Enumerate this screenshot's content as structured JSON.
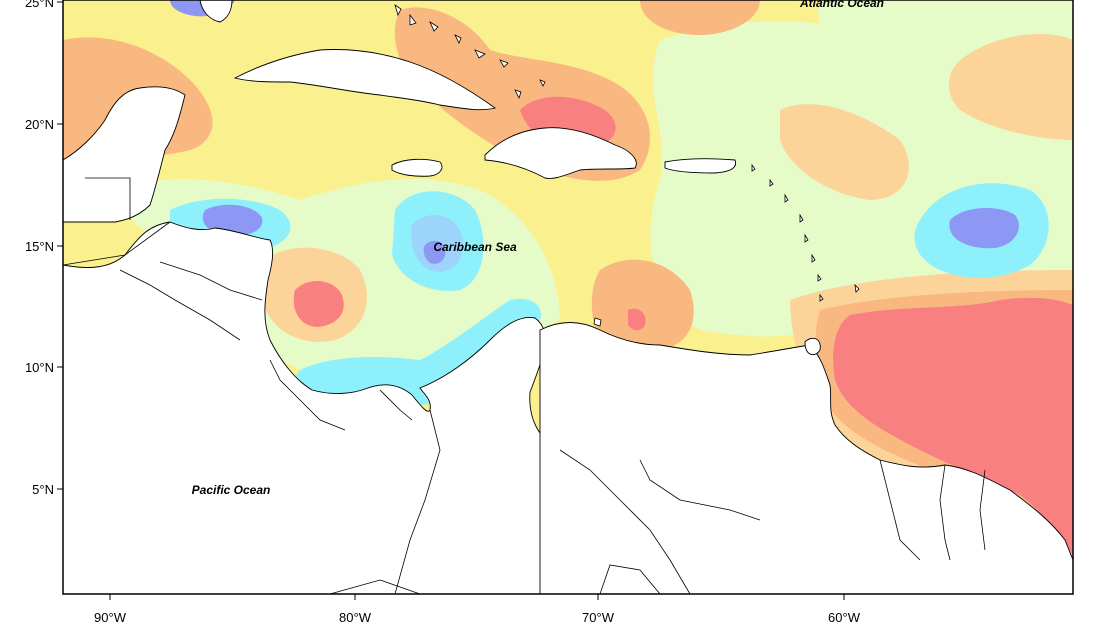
{
  "map": {
    "ocean_labels": {
      "atlantic": "Atlantic Ocean",
      "caribbean": "Caribbean Sea",
      "pacific": "Pacific Ocean"
    },
    "lat_ticks": [
      "25°N",
      "20°N",
      "15°N",
      "10°N",
      "5°N"
    ],
    "lon_ticks": [
      "90°W",
      "80°W",
      "70°W",
      "60°W"
    ],
    "colors": {
      "red": "#f98080",
      "orange": "#f9b880",
      "light_orange": "#fcd49a",
      "yellow": "#fbf08e",
      "pale_green": "#e6fcc8",
      "cyan": "#8ef0fb",
      "light_blue": "#9cd4fb",
      "blue": "#8c98f4",
      "land": "#ffffff",
      "coast": "#000000"
    }
  }
}
